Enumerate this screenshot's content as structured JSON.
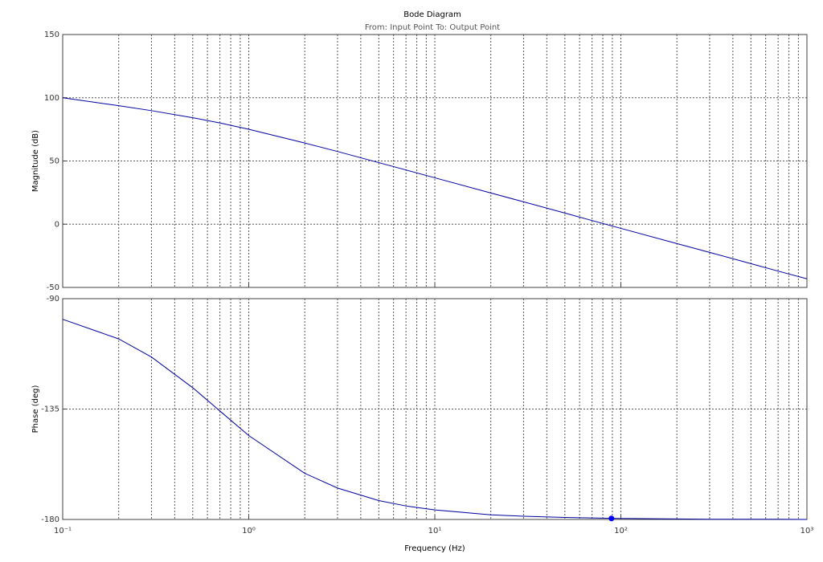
{
  "chart_data": [
    {
      "type": "line",
      "title": "Bode Diagram",
      "subtitle": "From: Input Point  To: Output Point",
      "y_label": "Magnitude (dB)",
      "xscale": "log",
      "grid": true,
      "x": [
        0.1,
        0.2,
        0.3,
        0.5,
        0.7,
        1,
        2,
        3,
        5,
        7,
        10,
        20,
        30,
        50,
        70,
        100,
        200,
        300,
        500,
        700,
        1000
      ],
      "series": [
        {
          "color": "#0000a0",
          "values": [
            100,
            93.7,
            89.8,
            84.2,
            80.1,
            75.1,
            64.2,
            57.5,
            48.7,
            42.9,
            36.7,
            24.7,
            17.7,
            8.8,
            2.9,
            -3.3,
            -15.3,
            -22.3,
            -31.2,
            -37.1,
            -43.2
          ]
        }
      ],
      "xlim": [
        0.1,
        1000
      ],
      "xticks": [
        0.1,
        1,
        10,
        100,
        1000
      ],
      "show_xtick_labels": false,
      "xminorticks": [
        0.2,
        0.3,
        0.4,
        0.5,
        0.6,
        0.7,
        0.8,
        0.9,
        2,
        3,
        4,
        5,
        6,
        7,
        8,
        9,
        20,
        30,
        40,
        50,
        60,
        70,
        80,
        90,
        200,
        300,
        400,
        500,
        600,
        700,
        800,
        900
      ],
      "ylim": [
        -50,
        150
      ],
      "yticks": [
        -50,
        0,
        50,
        100,
        150
      ]
    },
    {
      "type": "line",
      "y_label": "Phase (deg)",
      "x_label": "Frequency  (Hz)",
      "xscale": "log",
      "grid": true,
      "x": [
        0.1,
        0.2,
        0.3,
        0.5,
        0.7,
        1,
        2,
        3,
        5,
        7,
        10,
        20,
        30,
        50,
        70,
        100,
        200,
        300,
        500,
        700,
        1000
      ],
      "series": [
        {
          "color": "#0000a0",
          "values": [
            -98.4,
            -106.4,
            -113.8,
            -126.3,
            -135.8,
            -145.8,
            -161.2,
            -167.2,
            -172.3,
            -174.5,
            -176.1,
            -178.1,
            -178.7,
            -179.2,
            -179.4,
            -179.6,
            -179.8,
            -179.9,
            -179.9,
            -179.9,
            -180
          ]
        }
      ],
      "markers": [
        {
          "x": 89,
          "y": -179.6,
          "color": "#0000ff"
        }
      ],
      "xlim": [
        0.1,
        1000
      ],
      "xticks": [
        {
          "value": 0.1,
          "label": "10⁻¹"
        },
        {
          "value": 1,
          "label": "10⁰"
        },
        {
          "value": 10,
          "label": "10¹"
        },
        {
          "value": 100,
          "label": "10²"
        },
        {
          "value": 1000,
          "label": "10³"
        }
      ],
      "show_xtick_labels": true,
      "xminorticks": [
        0.2,
        0.3,
        0.4,
        0.5,
        0.6,
        0.7,
        0.8,
        0.9,
        2,
        3,
        4,
        5,
        6,
        7,
        8,
        9,
        20,
        30,
        40,
        50,
        60,
        70,
        80,
        90,
        200,
        300,
        400,
        500,
        600,
        700,
        800,
        900
      ],
      "ylim": [
        -180,
        -90
      ],
      "yticks": [
        -180,
        -135,
        -90
      ]
    }
  ]
}
